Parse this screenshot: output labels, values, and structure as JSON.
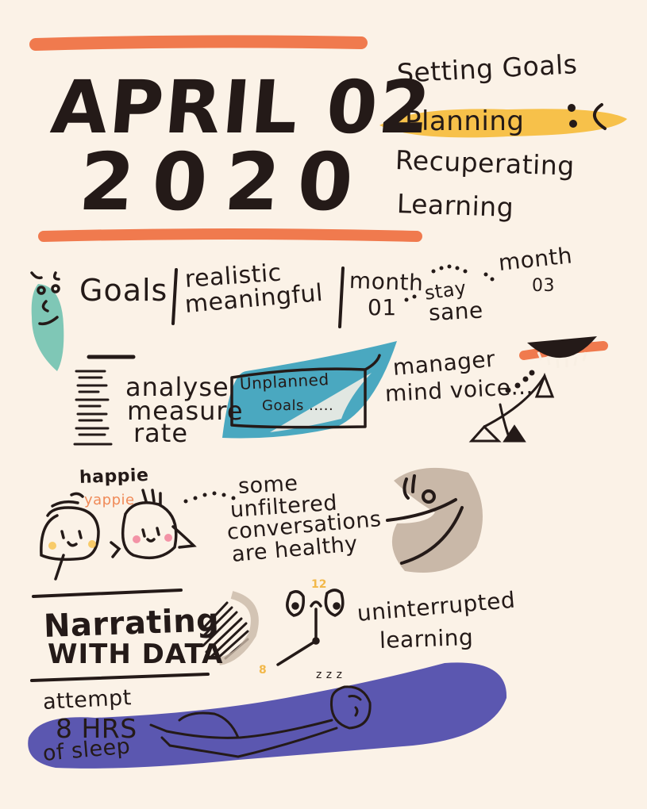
{
  "header": {
    "date_line1": "APRIL 02",
    "date_line2": "2020"
  },
  "topics": {
    "item1": "Setting Goals",
    "item2": "Planning",
    "item3": "Recuperating",
    "item4": "Learning"
  },
  "goals_row": {
    "title": "Goals",
    "realistic": "realistic",
    "meaningful": "meaningful",
    "month01_a": "month",
    "month01_b": "01",
    "stay": "stay",
    "sane": "sane",
    "month03_a": "month",
    "month03_b": "03"
  },
  "measure_list": {
    "analyse": "analyse",
    "measure": "measure",
    "rate": "rate"
  },
  "unplanned": {
    "line1": "Unplanned",
    "line2": "Goals ....."
  },
  "manager": {
    "line1": "manager",
    "line2": "mind voice..."
  },
  "conversation": {
    "happie": "happie",
    "yappie": "yappie",
    "line1": "some",
    "line2": "unfiltered",
    "line3": "conversations",
    "line4": "are healthy"
  },
  "narrating": {
    "line1": "Narrating",
    "line2": "WITH DATA"
  },
  "clock": {
    "twelve": "12",
    "eight": "8"
  },
  "learning": {
    "line1": "uninterrupted",
    "line2": "learning"
  },
  "sleep": {
    "zzz": "z z z",
    "line1": "attempt",
    "line2": "8 HRS",
    "line3": "of sleep"
  },
  "colors": {
    "background": "#fbf2e7",
    "ink": "#241a18",
    "orange_bar": "#f07a4e",
    "yellow_highlight": "#f7c14a",
    "teal": "#4aa8c0",
    "mint": "#7fc7b6",
    "taupe": "#c9b8a8",
    "indigo": "#5b57b0"
  }
}
